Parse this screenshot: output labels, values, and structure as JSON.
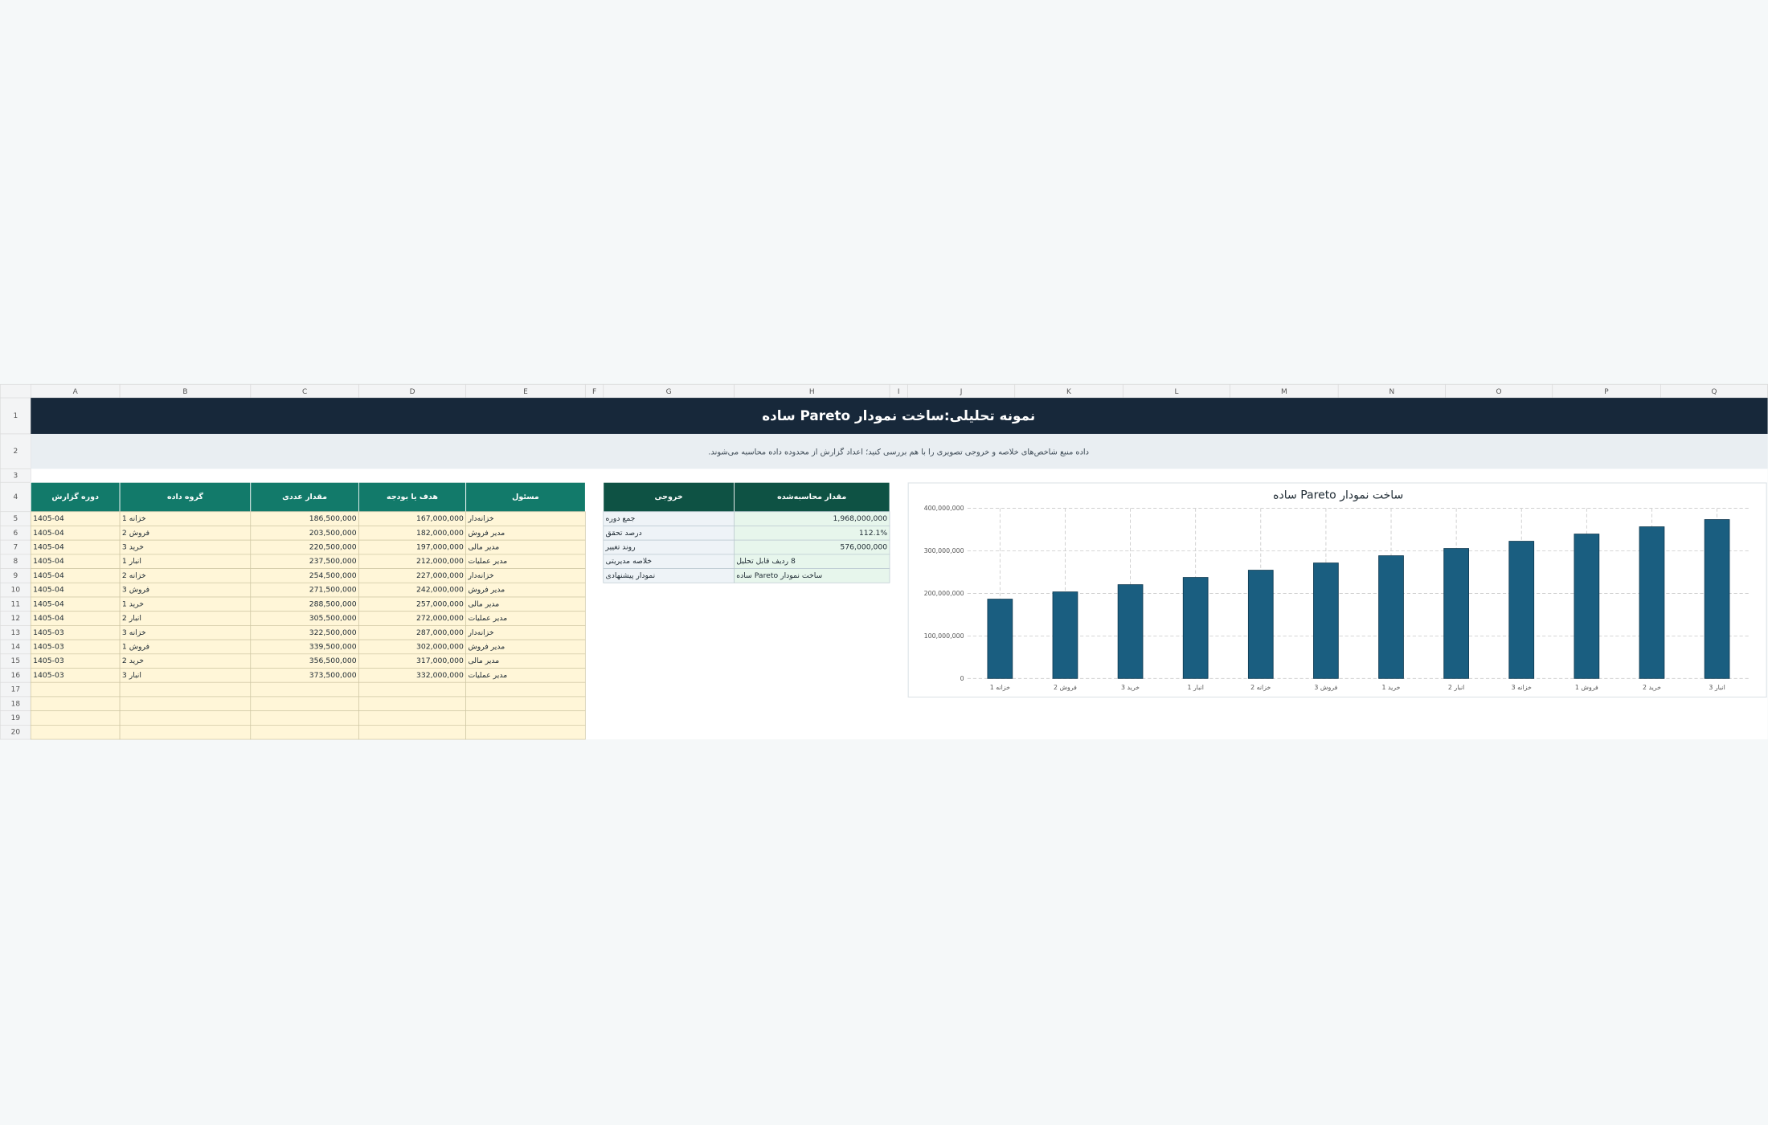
{
  "sheet": {
    "columns": [
      "A",
      "B",
      "C",
      "D",
      "E",
      "F",
      "G",
      "H",
      "I",
      "J",
      "K",
      "L",
      "M",
      "N",
      "O",
      "P",
      "Q"
    ],
    "rows": [
      "1",
      "2",
      "3",
      "4",
      "5",
      "6",
      "7",
      "8",
      "9",
      "10",
      "11",
      "12",
      "13",
      "14",
      "15",
      "16",
      "17",
      "18",
      "19",
      "20"
    ]
  },
  "title": "نمونه تحلیلی:ساخت نمودار Pareto ساده",
  "subtitle": "داده منبع شاخص‌های خلاصه و خروجی تصویری را با هم بررسی کنید؛ اعداد گزارش از محدوده داده محاسبه می‌شوند.",
  "table": {
    "headers": [
      "دوره گزارش",
      "گروه داده",
      "مقدار عددی",
      "هدف یا بودجه",
      "مسئول"
    ],
    "rows": [
      [
        "1405-04",
        "خزانه 1",
        "186,500,000",
        "167,000,000",
        "خزانه‌دار"
      ],
      [
        "1405-04",
        "فروش 2",
        "203,500,000",
        "182,000,000",
        "مدیر فروش"
      ],
      [
        "1405-04",
        "خرید 3",
        "220,500,000",
        "197,000,000",
        "مدیر مالی"
      ],
      [
        "1405-04",
        "انبار 1",
        "237,500,000",
        "212,000,000",
        "مدیر عملیات"
      ],
      [
        "1405-04",
        "خزانه 2",
        "254,500,000",
        "227,000,000",
        "خزانه‌دار"
      ],
      [
        "1405-04",
        "فروش 3",
        "271,500,000",
        "242,000,000",
        "مدیر فروش"
      ],
      [
        "1405-04",
        "خرید 1",
        "288,500,000",
        "257,000,000",
        "مدیر مالی"
      ],
      [
        "1405-04",
        "انبار 2",
        "305,500,000",
        "272,000,000",
        "مدیر عملیات"
      ],
      [
        "1405-03",
        "خزانه 3",
        "322,500,000",
        "287,000,000",
        "خزانه‌دار"
      ],
      [
        "1405-03",
        "فروش 1",
        "339,500,000",
        "302,000,000",
        "مدیر فروش"
      ],
      [
        "1405-03",
        "خرید 2",
        "356,500,000",
        "317,000,000",
        "مدیر مالی"
      ],
      [
        "1405-03",
        "انبار 3",
        "373,500,000",
        "332,000,000",
        "مدیر عملیات"
      ]
    ]
  },
  "summary": {
    "headers": [
      "خروجی",
      "مقدار محاسبه‌شده"
    ],
    "rows": [
      [
        "جمع دوره",
        "1,968,000,000"
      ],
      [
        "درصد تحقق",
        "112.1%"
      ],
      [
        "روند تغییر",
        "576,000,000"
      ],
      [
        "خلاصه مدیریتی",
        "8 ردیف قابل تحلیل"
      ],
      [
        "نمودار پیشنهادی",
        "ساخت نمودار Pareto ساده"
      ]
    ]
  },
  "chart_data": {
    "type": "bar",
    "title": "ساخت نمودار Pareto ساده",
    "categories": [
      "خزانه 1",
      "فروش 2",
      "خرید 3",
      "انبار 1",
      "خزانه 2",
      "فروش 3",
      "خرید 1",
      "انبار 2",
      "خزانه 3",
      "فروش 1",
      "خرید 2",
      "انبار 3"
    ],
    "values": [
      186500000,
      203500000,
      220500000,
      237500000,
      254500000,
      271500000,
      288500000,
      305500000,
      322500000,
      339500000,
      356500000,
      373500000
    ],
    "color": "#1a5e80",
    "ylim": [
      0,
      400000000
    ],
    "yticks": [
      0,
      {
        "value": 100000000,
        "label": "100,000,000"
      },
      {
        "value": 200000000,
        "label": "200,000,000"
      },
      {
        "value": 300000000,
        "label": "300,000,000"
      },
      {
        "value": 400000000,
        "label": "400,000,000"
      }
    ],
    "grid": true
  }
}
